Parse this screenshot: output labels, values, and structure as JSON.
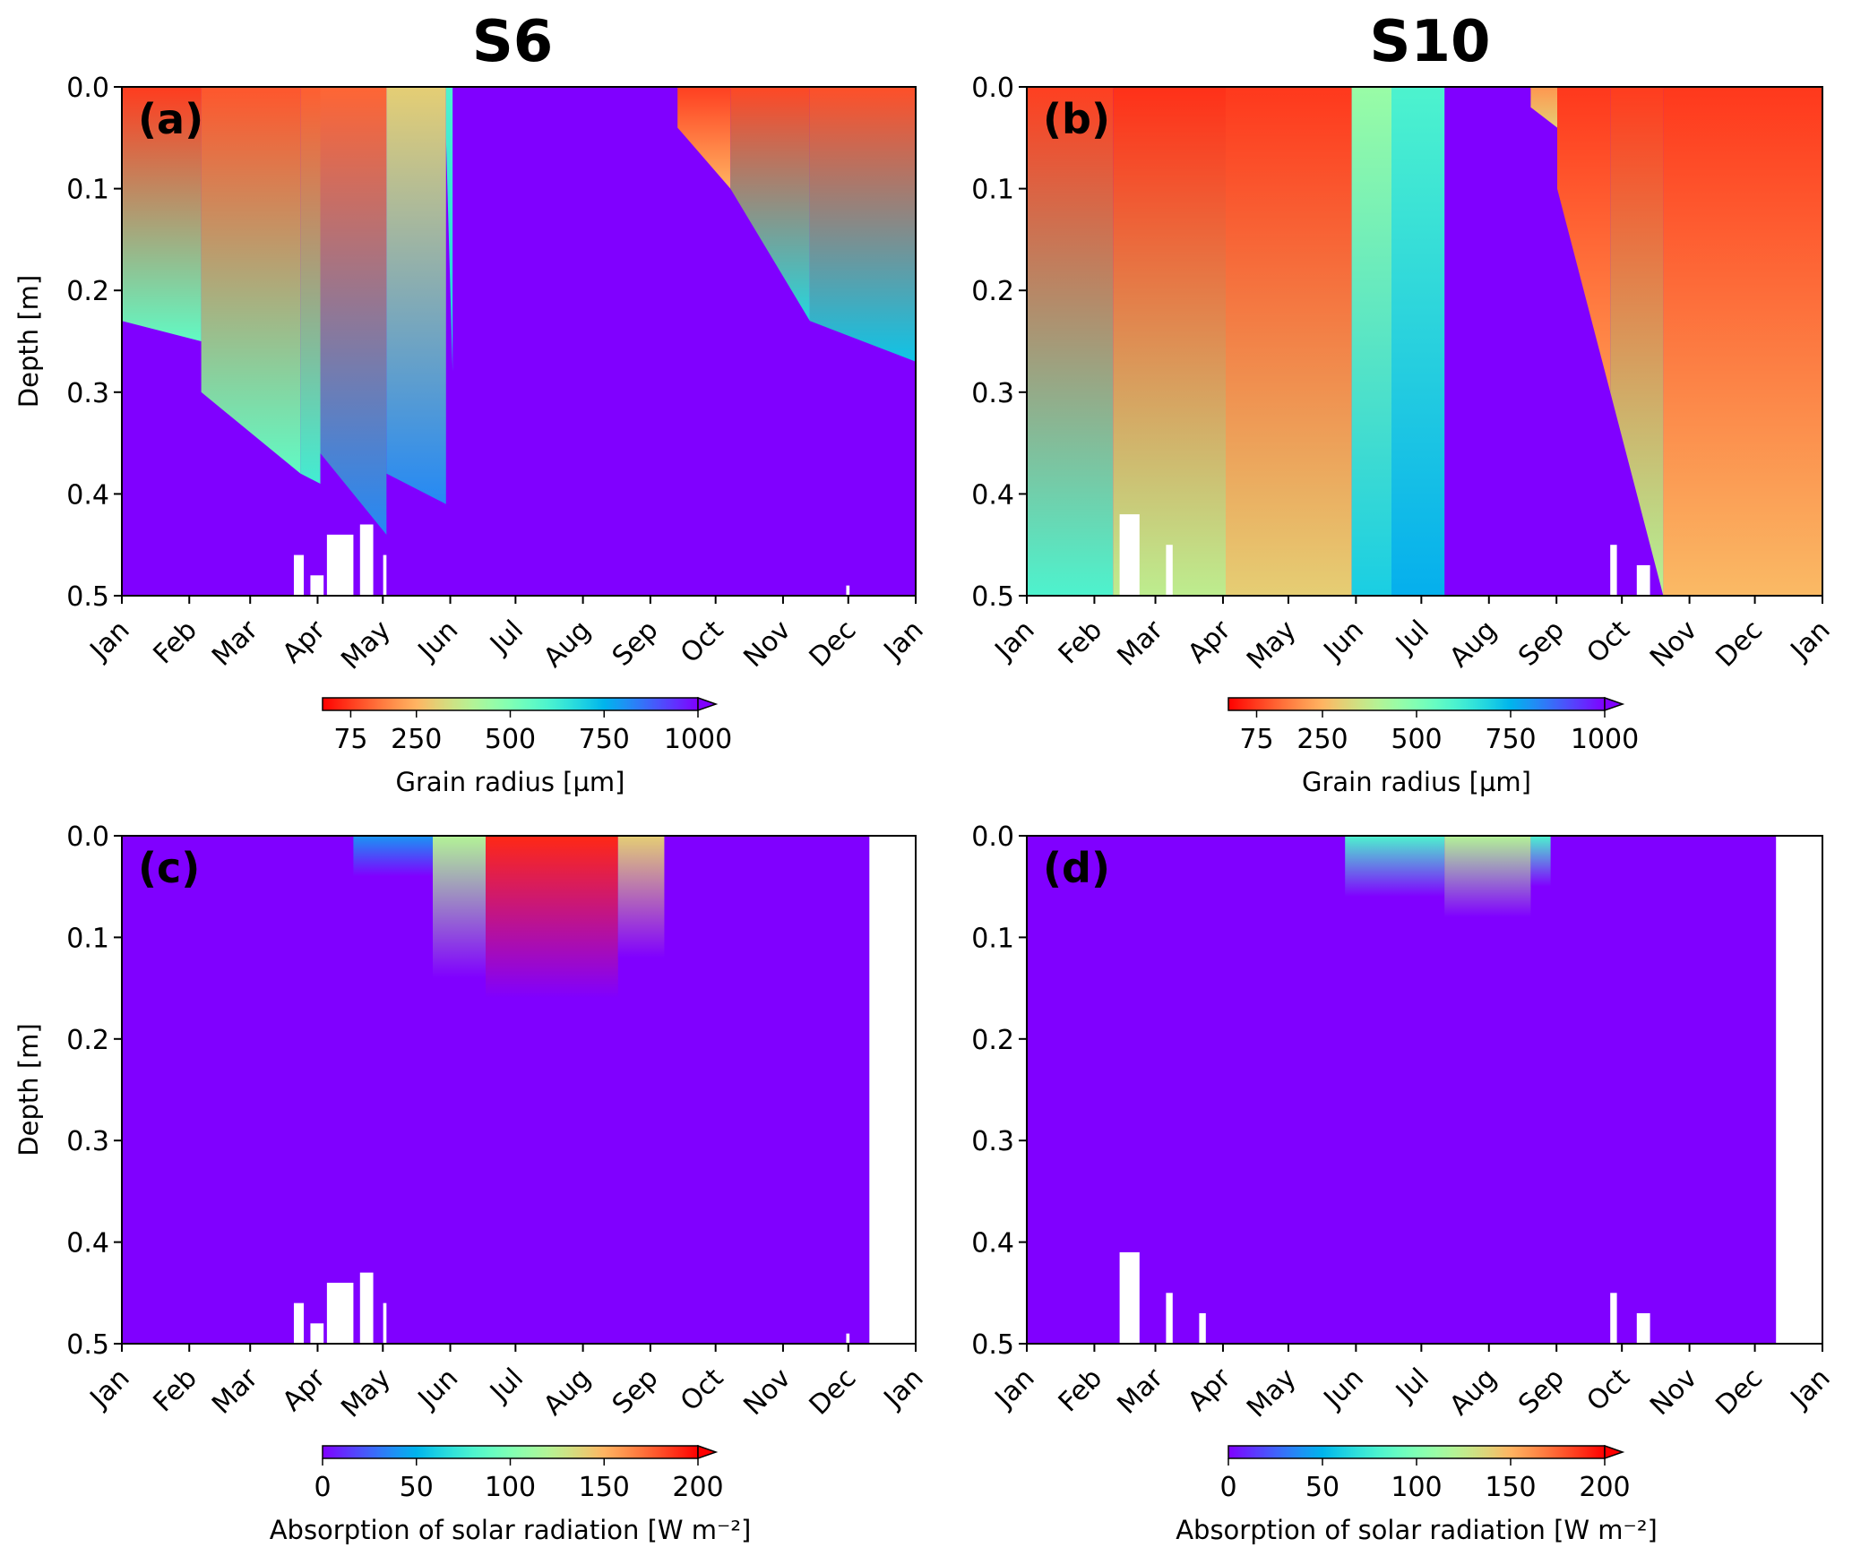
{
  "chart_data": [
    {
      "id": "a",
      "type": "heatmap",
      "column_title": "S6",
      "panel_label": "(a)",
      "ylabel": "Depth [m]",
      "ylim": [
        0.5,
        0.0
      ],
      "yticks": [
        "0.0",
        "0.1",
        "0.2",
        "0.3",
        "0.4",
        "0.5"
      ],
      "xticks": [
        "Jan",
        "Feb",
        "Mar",
        "Apr",
        "May",
        "Jun",
        "Jul",
        "Aug",
        "Sep",
        "Oct",
        "Nov",
        "Dec",
        "Jan"
      ],
      "colorbar": {
        "label": "Grain radius [µm]",
        "ticks": [
          "75",
          "250",
          "500",
          "750",
          "1000"
        ],
        "tick_values": [
          75,
          250,
          500,
          750,
          1000
        ],
        "range": [
          0,
          1000
        ],
        "cmap": "rainbow_r",
        "extend": "max"
      },
      "background_value": 1000,
      "segments_note": "month_start, month_end, layer_bottom_depth_start, layer_bottom_depth_end, surface_value, bottom_value",
      "segments": [
        [
          0.0,
          1.2,
          0.23,
          0.25,
          75,
          560
        ],
        [
          1.2,
          2.7,
          0.3,
          0.38,
          110,
          560
        ],
        [
          2.7,
          3.0,
          0.38,
          0.39,
          120,
          620
        ],
        [
          3.0,
          4.0,
          0.36,
          0.44,
          130,
          820
        ],
        [
          4.0,
          4.9,
          0.38,
          0.41,
          300,
          820
        ],
        [
          4.9,
          5.0,
          0.05,
          0.28,
          600,
          700
        ],
        [
          8.4,
          9.2,
          0.04,
          0.1,
          80,
          250
        ],
        [
          9.2,
          10.4,
          0.1,
          0.23,
          90,
          680
        ],
        [
          10.4,
          12.0,
          0.23,
          0.27,
          100,
          720
        ]
      ],
      "gaps": [
        [
          2.6,
          2.75,
          0.46
        ],
        [
          2.85,
          3.05,
          0.48
        ],
        [
          3.1,
          3.5,
          0.44
        ],
        [
          3.6,
          3.8,
          0.43
        ],
        [
          3.95,
          4.0,
          0.46
        ],
        [
          10.95,
          11.0,
          0.49
        ]
      ]
    },
    {
      "id": "b",
      "type": "heatmap",
      "column_title": "S10",
      "panel_label": "(b)",
      "ylabel": "",
      "ylim": [
        0.5,
        0.0
      ],
      "yticks": [
        "0.0",
        "0.1",
        "0.2",
        "0.3",
        "0.4",
        "0.5"
      ],
      "xticks": [
        "Jan",
        "Feb",
        "Mar",
        "Apr",
        "May",
        "Jun",
        "Jul",
        "Aug",
        "Sep",
        "Oct",
        "Nov",
        "Dec",
        "Jan"
      ],
      "colorbar": {
        "label": "Grain radius [µm]",
        "ticks": [
          "75",
          "250",
          "500",
          "750",
          "1000"
        ],
        "tick_values": [
          75,
          250,
          500,
          750,
          1000
        ],
        "range": [
          0,
          1000
        ],
        "cmap": "rainbow_r",
        "extend": "max"
      },
      "background_value": 1000,
      "segments": [
        [
          0.0,
          1.3,
          0.5,
          0.5,
          80,
          600
        ],
        [
          1.3,
          3.0,
          0.5,
          0.5,
          60,
          380
        ],
        [
          3.0,
          4.9,
          0.5,
          0.5,
          70,
          300
        ],
        [
          4.9,
          5.5,
          0.5,
          0.5,
          450,
          700
        ],
        [
          5.5,
          6.3,
          0.5,
          0.5,
          600,
          760
        ],
        [
          7.6,
          8.0,
          0.02,
          0.04,
          200,
          300
        ],
        [
          8.0,
          8.8,
          0.1,
          0.3,
          70,
          200
        ],
        [
          8.8,
          9.6,
          0.3,
          0.5,
          75,
          400
        ],
        [
          9.6,
          12.0,
          0.5,
          0.5,
          70,
          260
        ]
      ],
      "gaps": [
        [
          1.4,
          1.7,
          0.42
        ],
        [
          2.1,
          2.2,
          0.45
        ],
        [
          8.8,
          8.9,
          0.45
        ],
        [
          9.2,
          9.4,
          0.47
        ]
      ]
    },
    {
      "id": "c",
      "type": "heatmap",
      "panel_label": "(c)",
      "ylabel": "Depth [m]",
      "ylim": [
        0.5,
        0.0
      ],
      "yticks": [
        "0.0",
        "0.1",
        "0.2",
        "0.3",
        "0.4",
        "0.5"
      ],
      "xticks": [
        "Jan",
        "Feb",
        "Mar",
        "Apr",
        "May",
        "Jun",
        "Jul",
        "Aug",
        "Sep",
        "Oct",
        "Nov",
        "Dec",
        "Jan"
      ],
      "colorbar": {
        "label": "Absorption of solar radiation [W m⁻²]",
        "ticks": [
          "0",
          "50",
          "100",
          "150",
          "200"
        ],
        "tick_values": [
          0,
          50,
          100,
          150,
          200
        ],
        "range": [
          0,
          200
        ],
        "cmap": "rainbow",
        "extend": "max"
      },
      "background_value": 0,
      "segments": [
        [
          3.5,
          4.7,
          0.04,
          0.04,
          40,
          0
        ],
        [
          4.7,
          5.5,
          0.14,
          0.14,
          120,
          0
        ],
        [
          5.5,
          7.5,
          0.16,
          0.16,
          190,
          0
        ],
        [
          7.5,
          8.2,
          0.12,
          0.12,
          140,
          0
        ]
      ],
      "no_data_from_month": 11.3,
      "gaps": [
        [
          2.6,
          2.75,
          0.46
        ],
        [
          2.85,
          3.05,
          0.48
        ],
        [
          3.1,
          3.5,
          0.44
        ],
        [
          3.6,
          3.8,
          0.43
        ],
        [
          3.95,
          4.0,
          0.46
        ],
        [
          10.95,
          11.0,
          0.49
        ]
      ]
    },
    {
      "id": "d",
      "type": "heatmap",
      "panel_label": "(d)",
      "ylabel": "",
      "ylim": [
        0.5,
        0.0
      ],
      "yticks": [
        "0.0",
        "0.1",
        "0.2",
        "0.3",
        "0.4",
        "0.5"
      ],
      "xticks": [
        "Jan",
        "Feb",
        "Mar",
        "Apr",
        "May",
        "Jun",
        "Jul",
        "Aug",
        "Sep",
        "Oct",
        "Nov",
        "Dec",
        "Jan"
      ],
      "colorbar": {
        "label": "Absorption of solar radiation [W m⁻²]",
        "ticks": [
          "0",
          "50",
          "100",
          "150",
          "200"
        ],
        "tick_values": [
          0,
          50,
          100,
          150,
          200
        ],
        "range": [
          0,
          200
        ],
        "cmap": "rainbow",
        "extend": "max"
      },
      "background_value": 0,
      "segments": [
        [
          4.8,
          6.3,
          0.06,
          0.06,
          80,
          0
        ],
        [
          6.3,
          7.6,
          0.08,
          0.08,
          120,
          0
        ],
        [
          7.6,
          7.9,
          0.05,
          0.05,
          80,
          0
        ]
      ],
      "no_data_from_month": 11.3,
      "gaps": [
        [
          1.4,
          1.7,
          0.41
        ],
        [
          2.1,
          2.2,
          0.45
        ],
        [
          2.6,
          2.7,
          0.47
        ],
        [
          8.8,
          8.9,
          0.45
        ],
        [
          9.2,
          9.4,
          0.47
        ]
      ]
    }
  ]
}
